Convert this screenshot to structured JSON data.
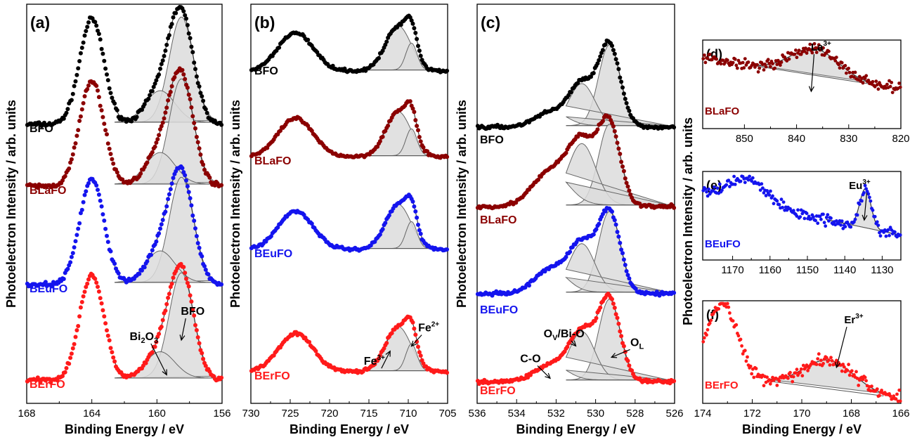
{
  "colors": {
    "BFO": "#000000",
    "BLaFO": "#8b0000",
    "BEuFO": "#1414ee",
    "BErFO": "#ff1a1a",
    "fill": "#dcdcdc"
  },
  "chart_data": [
    {
      "id": "a",
      "type": "scatter",
      "panel_label": "(a)",
      "xlabel": "Binding Energy / eV",
      "ylabel": "Photoelectron Intensity / arb. units",
      "xlim": [
        168,
        156
      ],
      "xticks": [
        "168",
        "164",
        "160",
        "156"
      ],
      "xtick_values": [
        168,
        164,
        160,
        156
      ],
      "series": [
        {
          "name": "BFO",
          "peaks": [
            [
              164,
              1.0,
              0.75
            ],
            [
              158.5,
              1.0,
              0.75
            ],
            [
              159.8,
              0.3,
              0.9
            ]
          ]
        },
        {
          "name": "BLaFO",
          "peaks": [
            [
              164,
              1.0,
              0.75
            ],
            [
              158.5,
              1.0,
              0.75
            ],
            [
              159.8,
              0.3,
              0.9
            ]
          ]
        },
        {
          "name": "BEuFO",
          "peaks": [
            [
              164,
              1.0,
              0.75
            ],
            [
              158.5,
              1.0,
              0.75
            ],
            [
              159.8,
              0.3,
              0.9
            ]
          ]
        },
        {
          "name": "BErFO",
          "peaks": [
            [
              164,
              1.0,
              0.75
            ],
            [
              158.5,
              1.0,
              0.75
            ],
            [
              159.8,
              0.25,
              0.9
            ]
          ]
        }
      ],
      "annotations": [
        {
          "key": "bi2o3",
          "text": "Bi",
          "sub": "2",
          "tail": "O",
          "sub2": "3",
          "x": 160.8,
          "s": 3,
          "f": 0.38,
          "ax": 159.4,
          "af": 0.05
        },
        {
          "key": "bfo",
          "text": "BFO",
          "x": 157.8,
          "s": 3,
          "f": 0.62,
          "ax": 158.5,
          "af": 0.38
        }
      ]
    },
    {
      "id": "b",
      "type": "scatter",
      "panel_label": "(b)",
      "xlabel": "Binding Energy / eV",
      "ylabel": "Photoelectron Intensity / arb. units",
      "xlim": [
        730,
        705
      ],
      "xticks": [
        "730",
        "725",
        "720",
        "715",
        "710",
        "705"
      ],
      "xtick_values": [
        730,
        725,
        720,
        715,
        710,
        705
      ],
      "series": [
        {
          "name": "BFO",
          "peaks": [
            [
              724.3,
              0.78,
              2.2
            ],
            [
              711.3,
              0.9,
              1.6
            ],
            [
              709.6,
              0.55,
              0.7
            ]
          ]
        },
        {
          "name": "BLaFO",
          "peaks": [
            [
              724.3,
              0.78,
              2.2
            ],
            [
              711.3,
              0.9,
              1.6
            ],
            [
              709.6,
              0.55,
              0.7
            ]
          ]
        },
        {
          "name": "BEuFO",
          "peaks": [
            [
              724.3,
              0.78,
              2.2
            ],
            [
              711.3,
              0.9,
              1.6
            ],
            [
              709.6,
              0.55,
              0.7
            ]
          ]
        },
        {
          "name": "BErFO",
          "peaks": [
            [
              724.3,
              0.78,
              2.2
            ],
            [
              711.3,
              0.9,
              1.6
            ],
            [
              709.6,
              0.55,
              0.7
            ]
          ]
        }
      ],
      "annotations": [
        {
          "key": "fe3",
          "text": "Fe",
          "sup": "3+",
          "x": 714.3,
          "s": 3,
          "f": 0.14,
          "ax": 712.3,
          "af": 0.42
        },
        {
          "key": "fe2",
          "text": "Fe",
          "sup": "2+",
          "x": 707.4,
          "s": 3,
          "f": 0.82,
          "ax": 709.6,
          "af": 0.52
        }
      ]
    },
    {
      "id": "c",
      "type": "scatter",
      "panel_label": "(c)",
      "xlabel": "Binding Energy / eV",
      "ylabel": "Photoelectron Intensity / arb. units",
      "xlim": [
        536,
        526
      ],
      "xticks": [
        "536",
        "534",
        "532",
        "530",
        "528",
        "526"
      ],
      "xtick_values": [
        536,
        534,
        532,
        530,
        528,
        526
      ],
      "series": [
        {
          "name": "BFO",
          "peaks": [
            [
              529.3,
              1.0,
              0.55
            ],
            [
              530.7,
              0.52,
              0.65
            ],
            [
              532.3,
              0.18,
              0.8
            ]
          ]
        },
        {
          "name": "BLaFO",
          "peaks": [
            [
              529.3,
              1.0,
              0.55
            ],
            [
              530.7,
              0.76,
              0.7
            ],
            [
              532.3,
              0.42,
              0.9
            ]
          ]
        },
        {
          "name": "BEuFO",
          "peaks": [
            [
              529.3,
              1.0,
              0.55
            ],
            [
              530.7,
              0.6,
              0.65
            ],
            [
              532.3,
              0.3,
              0.8
            ]
          ]
        },
        {
          "name": "BErFO",
          "peaks": [
            [
              529.3,
              1.0,
              0.55
            ],
            [
              530.7,
              0.6,
              0.65
            ],
            [
              532.3,
              0.2,
              0.8
            ]
          ]
        }
      ],
      "annotations": [
        {
          "key": "co",
          "text": "C-O",
          "x": 533.3,
          "s": 3,
          "f": 0.24,
          "ax": 532.3,
          "af": 0.04
        },
        {
          "key": "ov",
          "text": "O",
          "sub": "V",
          "tail": "/Bi-O",
          "x": 531.6,
          "s": 3,
          "f": 0.55,
          "ax": 531.0,
          "af": 0.44
        },
        {
          "key": "ol",
          "text": "O",
          "sub": "L",
          "x": 527.9,
          "s": 3,
          "f": 0.44,
          "ax": 529.2,
          "af": 0.3
        }
      ]
    },
    {
      "id": "d",
      "type": "scatter",
      "panel_label": "(d)",
      "xlim": [
        858,
        820
      ],
      "xticks": [
        "850",
        "840",
        "830",
        "820"
      ],
      "xtick_values": [
        850,
        840,
        830,
        820
      ],
      "series": [
        {
          "name": "BLaFO",
          "base": [
            0.8,
            0.45
          ],
          "peaks": [
            [
              836.5,
              0.3,
              4.5
            ]
          ],
          "fit": [
            848,
            826
          ]
        }
      ],
      "annotations": [
        {
          "key": "la",
          "text": "La",
          "sup": "3+",
          "x": 835.3,
          "f": 0.88,
          "ax": 837.2,
          "af": 0.42
        }
      ]
    },
    {
      "id": "e",
      "type": "scatter",
      "panel_label": "(e)",
      "xlim": [
        1178,
        1125
      ],
      "xticks": [
        "1170",
        "1160",
        "1150",
        "1140",
        "1130"
      ],
      "xtick_values": [
        1170,
        1160,
        1150,
        1140,
        1130
      ],
      "series": [
        {
          "name": "BEuFO",
          "base": [
            0.75,
            0.28
          ],
          "peaks": [
            [
              1166,
              0.28,
              5
            ],
            [
              1134.5,
              0.44,
              1.5
            ]
          ],
          "fit": [
            1145,
            1126
          ]
        }
      ],
      "annotations": [
        {
          "key": "eu",
          "text": "Eu",
          "sup": "3+",
          "x": 1136.0,
          "f": 0.8,
          "ax": 1134.8,
          "af": 0.45
        }
      ]
    },
    {
      "id": "f",
      "type": "scatter",
      "panel_label": "(f)",
      "xlabel": "Binding Energy / eV",
      "xlim": [
        174,
        166
      ],
      "xticks": [
        "174",
        "172",
        "170",
        "168",
        "166"
      ],
      "xtick_values": [
        174,
        172,
        170,
        168,
        166
      ],
      "series": [
        {
          "name": "BErFO",
          "base": [
            0.3,
            0.05
          ],
          "peaks": [
            [
              173.2,
              0.7,
              0.6
            ],
            [
              168.9,
              0.28,
              1.0
            ]
          ],
          "fit": [
            171.3,
            166.7
          ]
        }
      ],
      "annotations": [
        {
          "key": "er",
          "text": "Er",
          "sup": "3+",
          "x": 167.9,
          "f": 0.78,
          "ax": 168.6,
          "af": 0.35
        }
      ]
    }
  ]
}
